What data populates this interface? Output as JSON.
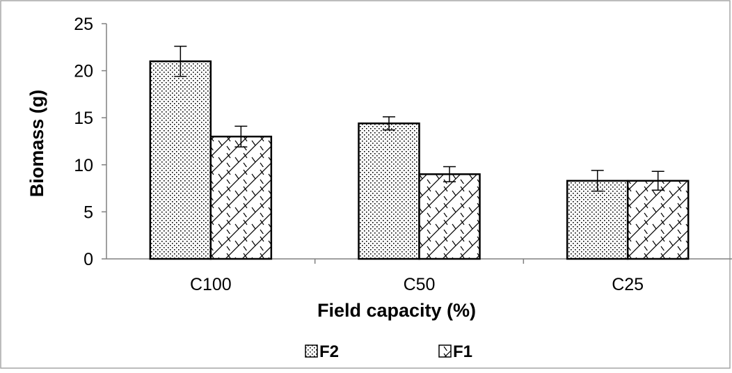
{
  "chart_data": {
    "type": "bar",
    "title": "",
    "xlabel": "Field capacity (%)",
    "ylabel": "Biomass (g)",
    "categories": [
      "C100",
      "C50",
      "C25"
    ],
    "ylim": [
      0,
      25
    ],
    "yticks": [
      0,
      5,
      10,
      15,
      20,
      25
    ],
    "grid": false,
    "legend_position": "bottom",
    "series": [
      {
        "name": "F2",
        "pattern": "dots",
        "values": [
          21.0,
          14.4,
          8.3
        ],
        "error": [
          1.6,
          0.7,
          1.1
        ]
      },
      {
        "name": "F1",
        "pattern": "diagonal-hatch",
        "values": [
          13.0,
          9.0,
          8.3
        ],
        "error": [
          1.1,
          0.8,
          1.0
        ]
      }
    ]
  }
}
